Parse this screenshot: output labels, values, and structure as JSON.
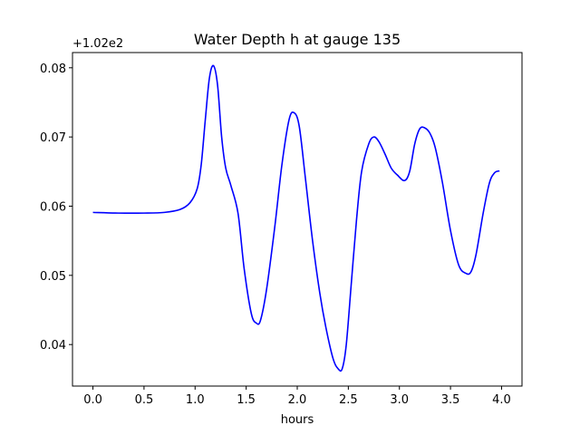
{
  "chart_data": {
    "type": "line",
    "title": "Water Depth h at gauge 135",
    "xlabel": "hours",
    "ylabel": "",
    "y_offset_label": "+1.02e2",
    "xlim": [
      -0.2,
      4.2
    ],
    "ylim": [
      0.034,
      0.0822
    ],
    "xticks": [
      0.0,
      0.5,
      1.0,
      1.5,
      2.0,
      2.5,
      3.0,
      3.5,
      4.0
    ],
    "xtick_labels": [
      "0.0",
      "0.5",
      "1.0",
      "1.5",
      "2.0",
      "2.5",
      "3.0",
      "3.5",
      "4.0"
    ],
    "yticks": [
      0.04,
      0.05,
      0.06,
      0.07,
      0.08
    ],
    "ytick_labels": [
      "0.04",
      "0.05",
      "0.06",
      "0.07",
      "0.08"
    ],
    "grid": false,
    "series": [
      {
        "color": "#0000ff",
        "x": [
          0.0,
          0.25,
          0.5,
          0.7,
          0.85,
          0.95,
          1.02,
          1.06,
          1.1,
          1.14,
          1.18,
          1.22,
          1.26,
          1.3,
          1.35,
          1.42,
          1.48,
          1.55,
          1.6,
          1.64,
          1.7,
          1.78,
          1.85,
          1.92,
          1.97,
          2.02,
          2.08,
          2.15,
          2.22,
          2.28,
          2.35,
          2.4,
          2.44,
          2.48,
          2.53,
          2.58,
          2.63,
          2.7,
          2.75,
          2.8,
          2.86,
          2.92,
          2.98,
          3.05,
          3.1,
          3.15,
          3.2,
          3.25,
          3.3,
          3.35,
          3.42,
          3.5,
          3.58,
          3.65,
          3.7,
          3.75,
          3.82,
          3.88,
          3.93,
          3.98
        ],
        "y": [
          0.0591,
          0.059,
          0.059,
          0.0591,
          0.0595,
          0.0605,
          0.0625,
          0.066,
          0.0725,
          0.0785,
          0.0803,
          0.0775,
          0.07,
          0.0655,
          0.063,
          0.059,
          0.051,
          0.0445,
          0.0431,
          0.0435,
          0.048,
          0.057,
          0.066,
          0.0725,
          0.0735,
          0.0715,
          0.064,
          0.055,
          0.0475,
          0.0425,
          0.038,
          0.0365,
          0.0365,
          0.04,
          0.049,
          0.058,
          0.065,
          0.069,
          0.07,
          0.0693,
          0.0675,
          0.0655,
          0.0645,
          0.0637,
          0.065,
          0.069,
          0.0712,
          0.0713,
          0.0705,
          0.0685,
          0.0635,
          0.0565,
          0.0515,
          0.0503,
          0.0505,
          0.053,
          0.059,
          0.0633,
          0.0648,
          0.0651
        ]
      }
    ]
  }
}
